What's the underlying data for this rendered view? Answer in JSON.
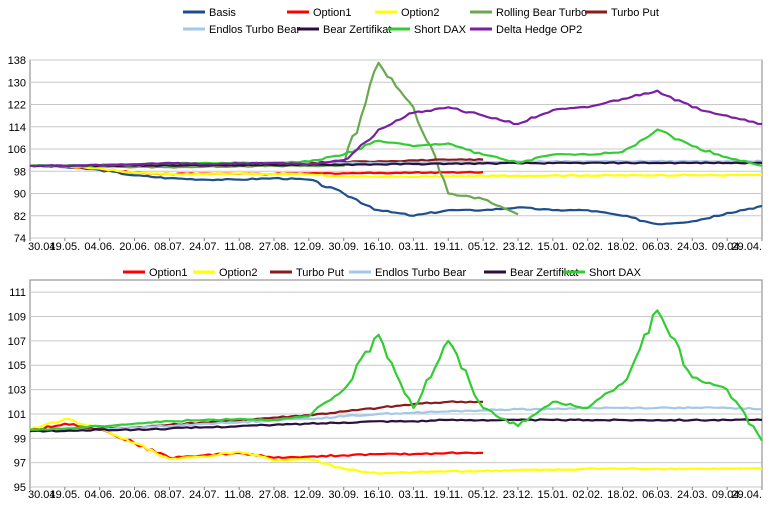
{
  "chart_data": [
    {
      "type": "line",
      "title": "",
      "xlabel": "",
      "ylabel": "",
      "ylim": [
        74,
        138
      ],
      "yticks": [
        74,
        82,
        90,
        98,
        106,
        114,
        122,
        130,
        138
      ],
      "grid": true,
      "legend_position": "top",
      "categories": [
        "30.04.",
        "19.05.",
        "04.06.",
        "20.06.",
        "08.07.",
        "24.07.",
        "11.08.",
        "27.08.",
        "12.09.",
        "30.09.",
        "16.10.",
        "03.11.",
        "19.11.",
        "05.12.",
        "23.12.",
        "15.01.",
        "02.02.",
        "18.02.",
        "06.03.",
        "24.03.",
        "09.04.",
        "29.04."
      ],
      "series": [
        {
          "name": "Basis",
          "color": "#1f4e8c",
          "values": [
            100,
            99.5,
            98.5,
            96.5,
            95.5,
            95,
            95,
            95.5,
            95,
            90,
            84,
            82,
            84,
            84,
            85,
            84,
            84,
            82,
            79,
            80,
            83,
            85.5
          ]
        },
        {
          "name": "Option1",
          "color": "#ff0000",
          "values": [
            100,
            99.6,
            99,
            97.5,
            97,
            97.2,
            97.1,
            97,
            97.2,
            97.3,
            97.4,
            97.5,
            97.6,
            97.7,
            null,
            null,
            null,
            null,
            null,
            null,
            null,
            null
          ]
        },
        {
          "name": "Option2",
          "color": "#ffff00",
          "values": [
            100,
            99.8,
            99,
            97.5,
            97,
            97,
            97.2,
            97,
            96.8,
            96,
            96,
            96,
            96.2,
            96.3,
            96.4,
            96.5,
            96.5,
            96.5,
            96.6,
            96.6,
            96.6,
            96.6
          ]
        },
        {
          "name": "Rolling Bear Turbo",
          "color": "#6aa84f",
          "values": [
            100,
            100,
            99.8,
            99.5,
            99.5,
            99.6,
            99.8,
            99.9,
            99.9,
            100,
            137,
            121,
            90,
            88,
            82.5,
            null,
            null,
            null,
            null,
            null,
            null,
            null
          ]
        },
        {
          "name": "Turbo Put",
          "color": "#8b1a1a",
          "values": [
            100,
            100,
            100,
            100.1,
            100.3,
            100.5,
            100.7,
            100.9,
            101.1,
            101.3,
            101.6,
            101.9,
            102.1,
            102.2,
            null,
            null,
            null,
            null,
            null,
            null,
            null,
            null
          ]
        },
        {
          "name": "Endlos Turbo Bear",
          "color": "#a4c8e8",
          "values": [
            100,
            100,
            100,
            100.1,
            100.2,
            100.3,
            100.4,
            100.6,
            100.7,
            100.9,
            101,
            101.1,
            101.3,
            101.4,
            101.5,
            101.5,
            101.6,
            101.6,
            101.6,
            101.6,
            101.6,
            101.6
          ]
        },
        {
          "name": "Bear Zertifikat",
          "color": "#2b0f3d",
          "values": [
            100,
            100,
            100,
            100,
            100.1,
            100.1,
            100.2,
            100.3,
            100.3,
            100.4,
            100.5,
            100.6,
            100.7,
            100.8,
            100.9,
            100.9,
            101,
            101,
            101,
            101,
            101,
            101
          ]
        },
        {
          "name": "Short DAX",
          "color": "#33cc33",
          "values": [
            100,
            100,
            100.2,
            100.5,
            100.8,
            101,
            101,
            101,
            101.5,
            104,
            109,
            107,
            108,
            104,
            101,
            104,
            104,
            105,
            113,
            107,
            103,
            100
          ]
        },
        {
          "name": "Delta Hedge OP2",
          "color": "#7b1fa2",
          "values": [
            100,
            100,
            100.2,
            100.5,
            101,
            100.5,
            100.8,
            101,
            100.5,
            102,
            113,
            119,
            121,
            118,
            115,
            120,
            121,
            124,
            127,
            121,
            118,
            115
          ]
        }
      ]
    },
    {
      "type": "line",
      "title": "",
      "xlabel": "",
      "ylabel": "",
      "ylim": [
        95,
        112
      ],
      "yticks": [
        95,
        97,
        99,
        101,
        103,
        105,
        107,
        109,
        111
      ],
      "grid": true,
      "legend_position": "top",
      "categories": [
        "30.04.",
        "19.05.",
        "04.06.",
        "20.06.",
        "08.07.",
        "24.07.",
        "11.08.",
        "27.08.",
        "12.09.",
        "30.09.",
        "16.10.",
        "03.11.",
        "19.11.",
        "05.12.",
        "23.12.",
        "15.01.",
        "02.02.",
        "18.02.",
        "06.03.",
        "24.03.",
        "09.04.",
        "29.04."
      ],
      "series": [
        {
          "name": "Option1",
          "color": "#ff0000",
          "values": [
            99.6,
            100.2,
            99.8,
            98.6,
            97.4,
            97.6,
            97.8,
            97.4,
            97.5,
            97.6,
            97.7,
            97.7,
            97.8,
            97.8,
            null,
            null,
            null,
            null,
            null,
            null,
            null,
            null
          ]
        },
        {
          "name": "Option2",
          "color": "#ffff00",
          "values": [
            99.7,
            100.6,
            99.8,
            98.6,
            97.3,
            97.5,
            97.9,
            97.2,
            97.3,
            96.5,
            96.1,
            96.2,
            96.3,
            96.3,
            96.4,
            96.4,
            96.5,
            96.5,
            96.5,
            96.5,
            96.5,
            96.5
          ]
        },
        {
          "name": "Turbo Put",
          "color": "#8b1a1a",
          "values": [
            99.7,
            99.7,
            99.8,
            99.9,
            100.1,
            100.3,
            100.5,
            100.7,
            100.9,
            101.2,
            101.5,
            101.8,
            102,
            102,
            null,
            null,
            null,
            null,
            null,
            null,
            null,
            null
          ]
        },
        {
          "name": "Endlos Turbo Bear",
          "color": "#a4c8e8",
          "values": [
            99.6,
            99.7,
            99.7,
            99.9,
            100,
            100.2,
            100.3,
            100.5,
            100.6,
            100.8,
            101,
            101.1,
            101.2,
            101.3,
            101.4,
            101.4,
            101.5,
            101.5,
            101.5,
            101.5,
            101.5,
            101.4
          ]
        },
        {
          "name": "Bear Zertifikat",
          "color": "#2b0f3d",
          "values": [
            99.6,
            99.6,
            99.7,
            99.7,
            99.8,
            99.9,
            100,
            100.1,
            100.2,
            100.3,
            100.4,
            100.4,
            100.5,
            100.5,
            100.5,
            100.5,
            100.5,
            100.5,
            100.5,
            100.5,
            100.5,
            100.5
          ]
        },
        {
          "name": "Short DAX",
          "color": "#33cc33",
          "values": [
            99.7,
            99.8,
            100,
            100.2,
            100.4,
            100.5,
            100.6,
            100.5,
            100.8,
            103,
            107.5,
            101.5,
            107,
            101.5,
            100,
            102,
            101.5,
            103.5,
            109.5,
            104,
            103,
            98.8
          ]
        }
      ]
    }
  ]
}
